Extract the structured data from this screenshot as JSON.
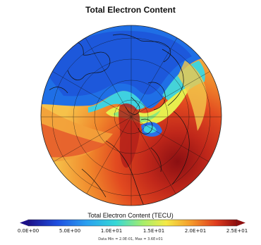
{
  "title": "Total Electron Content",
  "colorbar": {
    "label": "Total Electron Content (TECU)",
    "ticks": [
      "0.0E+00",
      "5.0E+00",
      "1.0E+01",
      "1.5E+01",
      "2.0E+01",
      "2.5E+01"
    ],
    "min": 0,
    "max": 25,
    "colors": [
      "#1b0f88",
      "#1e6ff2",
      "#28c7e3",
      "#7ee58e",
      "#f3ef4a",
      "#f7a12b",
      "#e2401f",
      "#8e0e0e"
    ]
  },
  "data_range": "Data Min = 2.0E-01, Max = 3.6E+01",
  "map": {
    "projection": "polar-north",
    "field_regions": [
      "high-latitude low TEC (blue)",
      "auroral oval",
      "sunlit high TEC (red)"
    ]
  }
}
